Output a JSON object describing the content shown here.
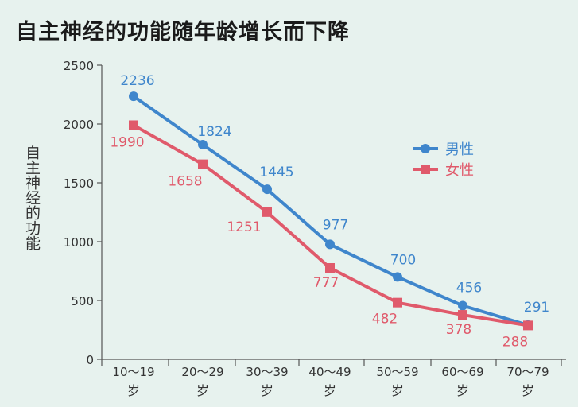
{
  "chart_data": {
    "type": "line",
    "title": "自主神经的功能随年龄增长而下降",
    "ylabel": "自主神经的功能",
    "xlabel": "",
    "categories": [
      "10～19岁",
      "20～29岁",
      "30～39岁",
      "40～49岁",
      "50～59岁",
      "60～69岁",
      "70～79岁"
    ],
    "category_lines": [
      [
        "10～19",
        "岁"
      ],
      [
        "20～29",
        "岁"
      ],
      [
        "30～39",
        "岁"
      ],
      [
        "40～49",
        "岁"
      ],
      [
        "50～59",
        "岁"
      ],
      [
        "60～69",
        "岁"
      ],
      [
        "70～79",
        "岁"
      ]
    ],
    "yticks": [
      0,
      500,
      1000,
      1500,
      2000,
      2500
    ],
    "ylim": [
      0,
      2500
    ],
    "grid": false,
    "legend_position": "upper-right",
    "series": [
      {
        "name": "男性",
        "values": [
          2236,
          1824,
          1445,
          977,
          700,
          456,
          291
        ],
        "color": "#3f86cc",
        "marker": "circle",
        "label_position": "above"
      },
      {
        "name": "女性",
        "values": [
          1990,
          1658,
          1251,
          777,
          482,
          378,
          288
        ],
        "color": "#e05a6b",
        "marker": "square",
        "label_position": "below"
      }
    ]
  }
}
